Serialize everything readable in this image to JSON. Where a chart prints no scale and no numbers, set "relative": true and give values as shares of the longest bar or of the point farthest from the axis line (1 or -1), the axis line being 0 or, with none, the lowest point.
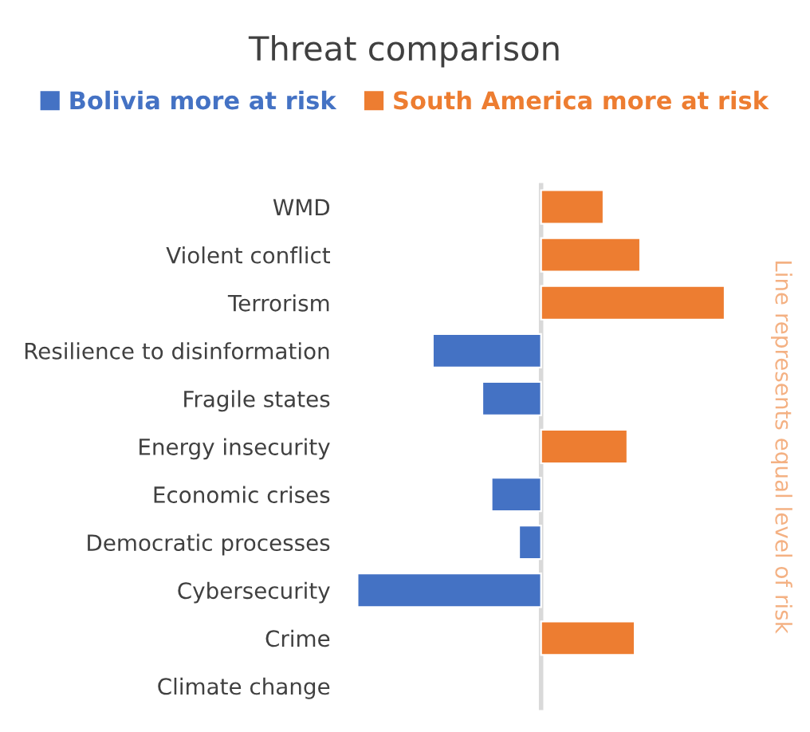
{
  "chart_data": {
    "type": "bar",
    "orientation": "horizontal",
    "stacked": true,
    "relative": true,
    "title": "Threat comparison",
    "categories": [
      "WMD",
      "Violent conflict",
      "Terrorism",
      "Resilience to disinformation",
      "Fragile states",
      "Energy insecurity",
      "Economic crises",
      "Democratic processes",
      "Cybersecurity",
      "Crime",
      "Climate change"
    ],
    "series": [
      {
        "name": "Bolivia more at risk",
        "color": "#4472c4",
        "values": [
          null,
          null,
          null,
          -0.59,
          -0.32,
          null,
          -0.27,
          -0.12,
          -1.0,
          null,
          null
        ]
      },
      {
        "name": "South America more at risk",
        "color": "#ed7d31",
        "values": [
          0.34,
          0.54,
          1.0,
          null,
          null,
          0.47,
          null,
          null,
          null,
          0.51,
          null
        ]
      }
    ],
    "ref_lines": [
      {
        "axis": "x",
        "value": 0,
        "color": "#d9d9d9"
      }
    ],
    "annotations": [
      "Line represents equal level of risk"
    ],
    "legend": "top",
    "grid": false
  }
}
